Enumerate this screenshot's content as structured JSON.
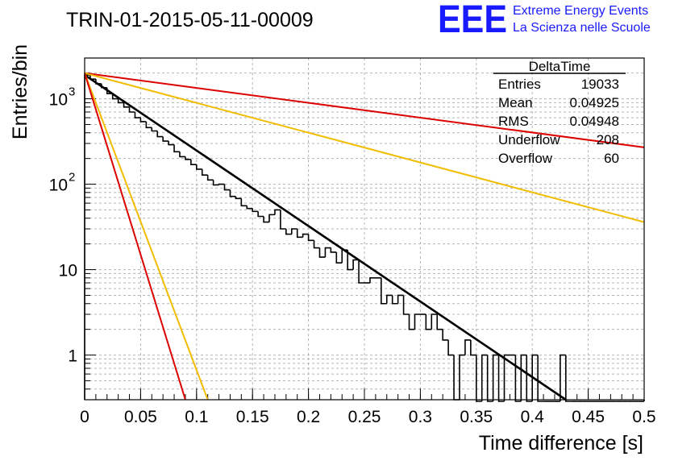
{
  "header": {
    "run_title": "TRIN-01-2015-05-11-00009",
    "logo_text": "EEE",
    "logo_line1": "Extreme Energy Events",
    "logo_line2": "La Scienza nelle Scuole",
    "logo_color": "#1a1aff"
  },
  "stats": {
    "title": "DeltaTime",
    "rows": [
      {
        "label": "Entries",
        "value": "19033"
      },
      {
        "label": "Mean",
        "value": "0.04925"
      },
      {
        "label": "RMS",
        "value": "0.04948"
      },
      {
        "label": "Underflow",
        "value": "208"
      },
      {
        "label": "Overflow",
        "value": "60"
      }
    ]
  },
  "chart_data": {
    "type": "histogram",
    "title": "TRIN-01-2015-05-11-00009",
    "xlabel": "Time difference [s]",
    "ylabel": "Entries/bin",
    "xlim": [
      0,
      0.5
    ],
    "ylim": [
      0.3,
      3000
    ],
    "y_log_scale": true,
    "grid": true,
    "x_ticks": [
      "0",
      "0.05",
      "0.1",
      "0.15",
      "0.2",
      "0.25",
      "0.3",
      "0.35",
      "0.4",
      "0.45",
      "0.5"
    ],
    "y_ticks": [
      "1",
      "10",
      "10^2",
      "10^3"
    ],
    "bin_width": 0.005,
    "counts": [
      1900,
      1700,
      1500,
      1350,
      1150,
      1000,
      900,
      800,
      700,
      600,
      540,
      460,
      420,
      360,
      320,
      290,
      240,
      210,
      195,
      170,
      150,
      128,
      112,
      98,
      100,
      86,
      72,
      68,
      56,
      52,
      48,
      42,
      36,
      44,
      50,
      30,
      26,
      30,
      24,
      26,
      22,
      18,
      14,
      18,
      16,
      12,
      17,
      10,
      13,
      7,
      7,
      8,
      8,
      4,
      5,
      4,
      5,
      3,
      2,
      3,
      3,
      2,
      3,
      2,
      1.5,
      1,
      0.3,
      1,
      1.5,
      1,
      0,
      1,
      0,
      1,
      0,
      1,
      1,
      0,
      1,
      0,
      1,
      0,
      0,
      0,
      0,
      1,
      0,
      0,
      0,
      0,
      0,
      0,
      0,
      0,
      0,
      0,
      0,
      0,
      0,
      0
    ],
    "fits": [
      {
        "color": "#000000",
        "x": [
          0,
          0.43
        ],
        "y": [
          1900,
          0.3
        ]
      },
      {
        "color": "#dd0000",
        "x": [
          0,
          0.5
        ],
        "y": [
          2000,
          270
        ]
      },
      {
        "color": "#f2bc00",
        "x": [
          0,
          0.5
        ],
        "y": [
          2000,
          36
        ]
      },
      {
        "color": "#f2bc00",
        "x": [
          0,
          0.11
        ],
        "y": [
          2000,
          0.3
        ]
      },
      {
        "color": "#dd0000",
        "x": [
          0,
          0.09
        ],
        "y": [
          2000,
          0.3
        ]
      }
    ]
  }
}
